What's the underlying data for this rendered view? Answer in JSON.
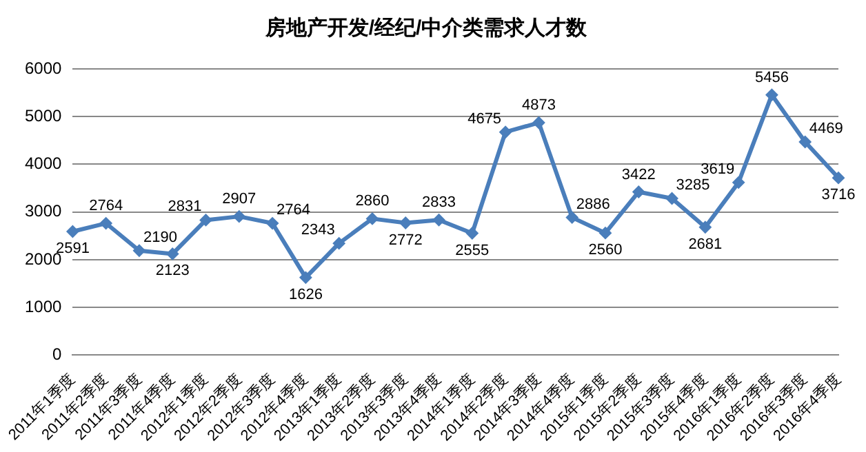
{
  "chart_data": {
    "type": "line",
    "title": "房地产开发/经纪/中介类需求人才数",
    "categories": [
      "2011年1季度",
      "2011年2季度",
      "2011年3季度",
      "2011年4季度",
      "2012年1季度",
      "2012年2季度",
      "2012年3季度",
      "2012年4季度",
      "2013年1季度",
      "2013年2季度",
      "2013年3季度",
      "2013年4季度",
      "2014年1季度",
      "2014年2季度",
      "2014年3季度",
      "2014年4季度",
      "2015年1季度",
      "2015年2季度",
      "2015年3季度",
      "2015年4季度",
      "2016年1季度",
      "2016年2季度",
      "2016年3季度",
      "2016年4季度"
    ],
    "series": [
      {
        "color": "#4a7ebb",
        "values": [
          2591,
          2764,
          2190,
          2123,
          2831,
          2907,
          2764,
          1626,
          2343,
          2860,
          2772,
          2833,
          2555,
          4675,
          4873,
          2886,
          2560,
          3422,
          3285,
          2681,
          3619,
          5456,
          4469,
          3716
        ]
      }
    ],
    "ylim": [
      0,
      6000
    ],
    "yticks": [
      0,
      1000,
      2000,
      3000,
      4000,
      5000,
      6000
    ],
    "grid": "y",
    "legend": false,
    "marker": "diamond",
    "line_style": "solid",
    "data_labels": true
  }
}
